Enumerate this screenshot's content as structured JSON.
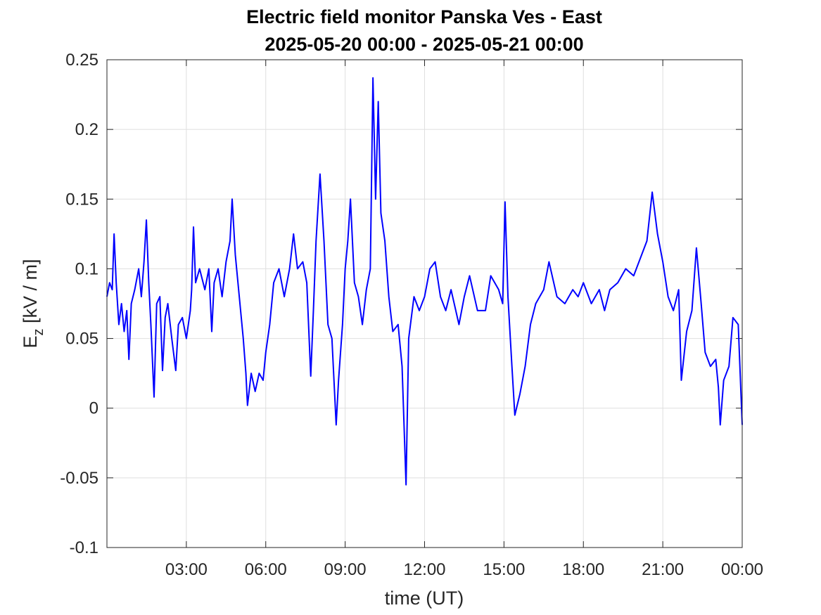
{
  "chart_data": {
    "type": "line",
    "title": "Electric field monitor Panska Ves - East",
    "subtitle": "2025-05-20 00:00 - 2025-05-21 00:00",
    "xlabel": "time (UT)",
    "ylabel_parts": [
      "E",
      "z",
      " [kV / m]"
    ],
    "xlim": [
      0,
      24
    ],
    "xticks": [
      {
        "value": 3,
        "label": "03:00"
      },
      {
        "value": 6,
        "label": "06:00"
      },
      {
        "value": 9,
        "label": "09:00"
      },
      {
        "value": 12,
        "label": "12:00"
      },
      {
        "value": 15,
        "label": "15:00"
      },
      {
        "value": 18,
        "label": "18:00"
      },
      {
        "value": 21,
        "label": "21:00"
      },
      {
        "value": 24,
        "label": "00:00"
      }
    ],
    "ylim": [
      -0.1,
      0.25
    ],
    "yticks": [
      -0.1,
      -0.05,
      0,
      0.05,
      0.1,
      0.15,
      0.2,
      0.25
    ],
    "grid": true,
    "x": [
      0.0,
      0.1,
      0.2,
      0.27,
      0.35,
      0.45,
      0.55,
      0.65,
      0.75,
      0.83,
      0.92,
      1.05,
      1.2,
      1.3,
      1.4,
      1.49,
      1.58,
      1.66,
      1.78,
      1.88,
      2.0,
      2.1,
      2.2,
      2.3,
      2.45,
      2.6,
      2.7,
      2.85,
      3.0,
      3.15,
      3.2,
      3.27,
      3.35,
      3.5,
      3.7,
      3.85,
      3.96,
      4.05,
      4.2,
      4.35,
      4.5,
      4.65,
      4.73,
      4.85,
      4.95,
      5.05,
      5.15,
      5.25,
      5.31,
      5.45,
      5.6,
      5.75,
      5.9,
      6.0,
      6.15,
      6.3,
      6.5,
      6.7,
      6.9,
      7.05,
      7.2,
      7.4,
      7.55,
      7.7,
      7.8,
      7.9,
      8.05,
      8.2,
      8.35,
      8.5,
      8.66,
      8.75,
      8.9,
      9.0,
      9.1,
      9.2,
      9.35,
      9.5,
      9.65,
      9.8,
      9.95,
      10.05,
      10.15,
      10.25,
      10.35,
      10.5,
      10.65,
      10.8,
      11.0,
      11.15,
      11.3,
      11.4,
      11.6,
      11.8,
      12.0,
      12.2,
      12.4,
      12.6,
      12.8,
      13.0,
      13.3,
      13.5,
      13.7,
      14.0,
      14.3,
      14.5,
      14.8,
      14.95,
      15.04,
      15.15,
      15.3,
      15.41,
      15.6,
      15.8,
      16.0,
      16.2,
      16.5,
      16.7,
      17.0,
      17.3,
      17.6,
      17.8,
      18.0,
      18.3,
      18.6,
      18.8,
      19.0,
      19.3,
      19.6,
      19.9,
      20.2,
      20.4,
      20.6,
      20.8,
      21.0,
      21.2,
      21.4,
      21.6,
      21.7,
      21.9,
      22.1,
      22.27,
      22.45,
      22.6,
      22.8,
      23.0,
      23.1,
      23.17,
      23.3,
      23.5,
      23.65,
      23.85,
      24.0
    ],
    "series": [
      {
        "color": "#0000ff",
        "values": [
          0.08,
          0.09,
          0.085,
          0.125,
          0.09,
          0.06,
          0.075,
          0.055,
          0.07,
          0.035,
          0.075,
          0.085,
          0.1,
          0.08,
          0.105,
          0.135,
          0.09,
          0.06,
          0.008,
          0.075,
          0.08,
          0.027,
          0.065,
          0.075,
          0.05,
          0.027,
          0.06,
          0.065,
          0.05,
          0.07,
          0.085,
          0.13,
          0.09,
          0.1,
          0.085,
          0.1,
          0.055,
          0.09,
          0.1,
          0.08,
          0.105,
          0.12,
          0.15,
          0.11,
          0.09,
          0.07,
          0.05,
          0.025,
          0.002,
          0.025,
          0.012,
          0.025,
          0.02,
          0.04,
          0.06,
          0.09,
          0.1,
          0.08,
          0.1,
          0.125,
          0.1,
          0.105,
          0.09,
          0.023,
          0.07,
          0.12,
          0.168,
          0.12,
          0.06,
          0.05,
          -0.012,
          0.02,
          0.06,
          0.1,
          0.12,
          0.15,
          0.09,
          0.08,
          0.06,
          0.085,
          0.1,
          0.237,
          0.15,
          0.22,
          0.14,
          0.12,
          0.08,
          0.055,
          0.06,
          0.03,
          -0.055,
          0.05,
          0.08,
          0.07,
          0.08,
          0.1,
          0.105,
          0.08,
          0.07,
          0.085,
          0.06,
          0.08,
          0.095,
          0.07,
          0.07,
          0.095,
          0.085,
          0.075,
          0.148,
          0.08,
          0.03,
          -0.005,
          0.01,
          0.03,
          0.06,
          0.075,
          0.085,
          0.105,
          0.08,
          0.075,
          0.085,
          0.08,
          0.09,
          0.075,
          0.085,
          0.07,
          0.085,
          0.09,
          0.1,
          0.095,
          0.11,
          0.12,
          0.155,
          0.125,
          0.105,
          0.08,
          0.07,
          0.085,
          0.02,
          0.055,
          0.07,
          0.115,
          0.075,
          0.04,
          0.03,
          0.035,
          0.015,
          -0.012,
          0.02,
          0.03,
          0.065,
          0.06,
          -0.012
        ]
      }
    ]
  }
}
